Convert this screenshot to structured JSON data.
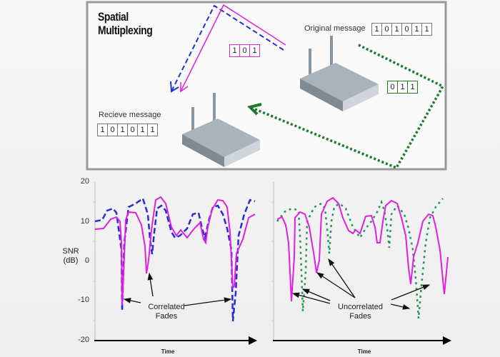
{
  "diagram": {
    "title_line1": "Spatial",
    "title_line2": "Multiplexing",
    "original_label": "Original message",
    "original_bits": [
      "1",
      "0",
      "1",
      "0",
      "1",
      "1"
    ],
    "receive_label": "Recieve message",
    "receive_bits": [
      "1",
      "0",
      "1",
      "0",
      "1",
      "1"
    ],
    "stream1_bits": [
      "1",
      "0",
      "1"
    ],
    "stream2_bits": [
      "0",
      "1",
      "1"
    ],
    "colors": {
      "pink": "#e020e0",
      "blue": "#2222cc",
      "green": "#1a7a2a"
    }
  },
  "charts": {
    "ylabel_1": "SNR",
    "ylabel_2": "(dB)",
    "yticks": [
      "20",
      "10",
      "0",
      "-10",
      "-20"
    ],
    "xlabel_left": "Time",
    "xlabel_right": "Time",
    "left_annotation_1": "Correlated",
    "left_annotation_2": "Fades",
    "right_annotation_1": "Uncorrelated",
    "right_annotation_2": "Fades"
  }
}
